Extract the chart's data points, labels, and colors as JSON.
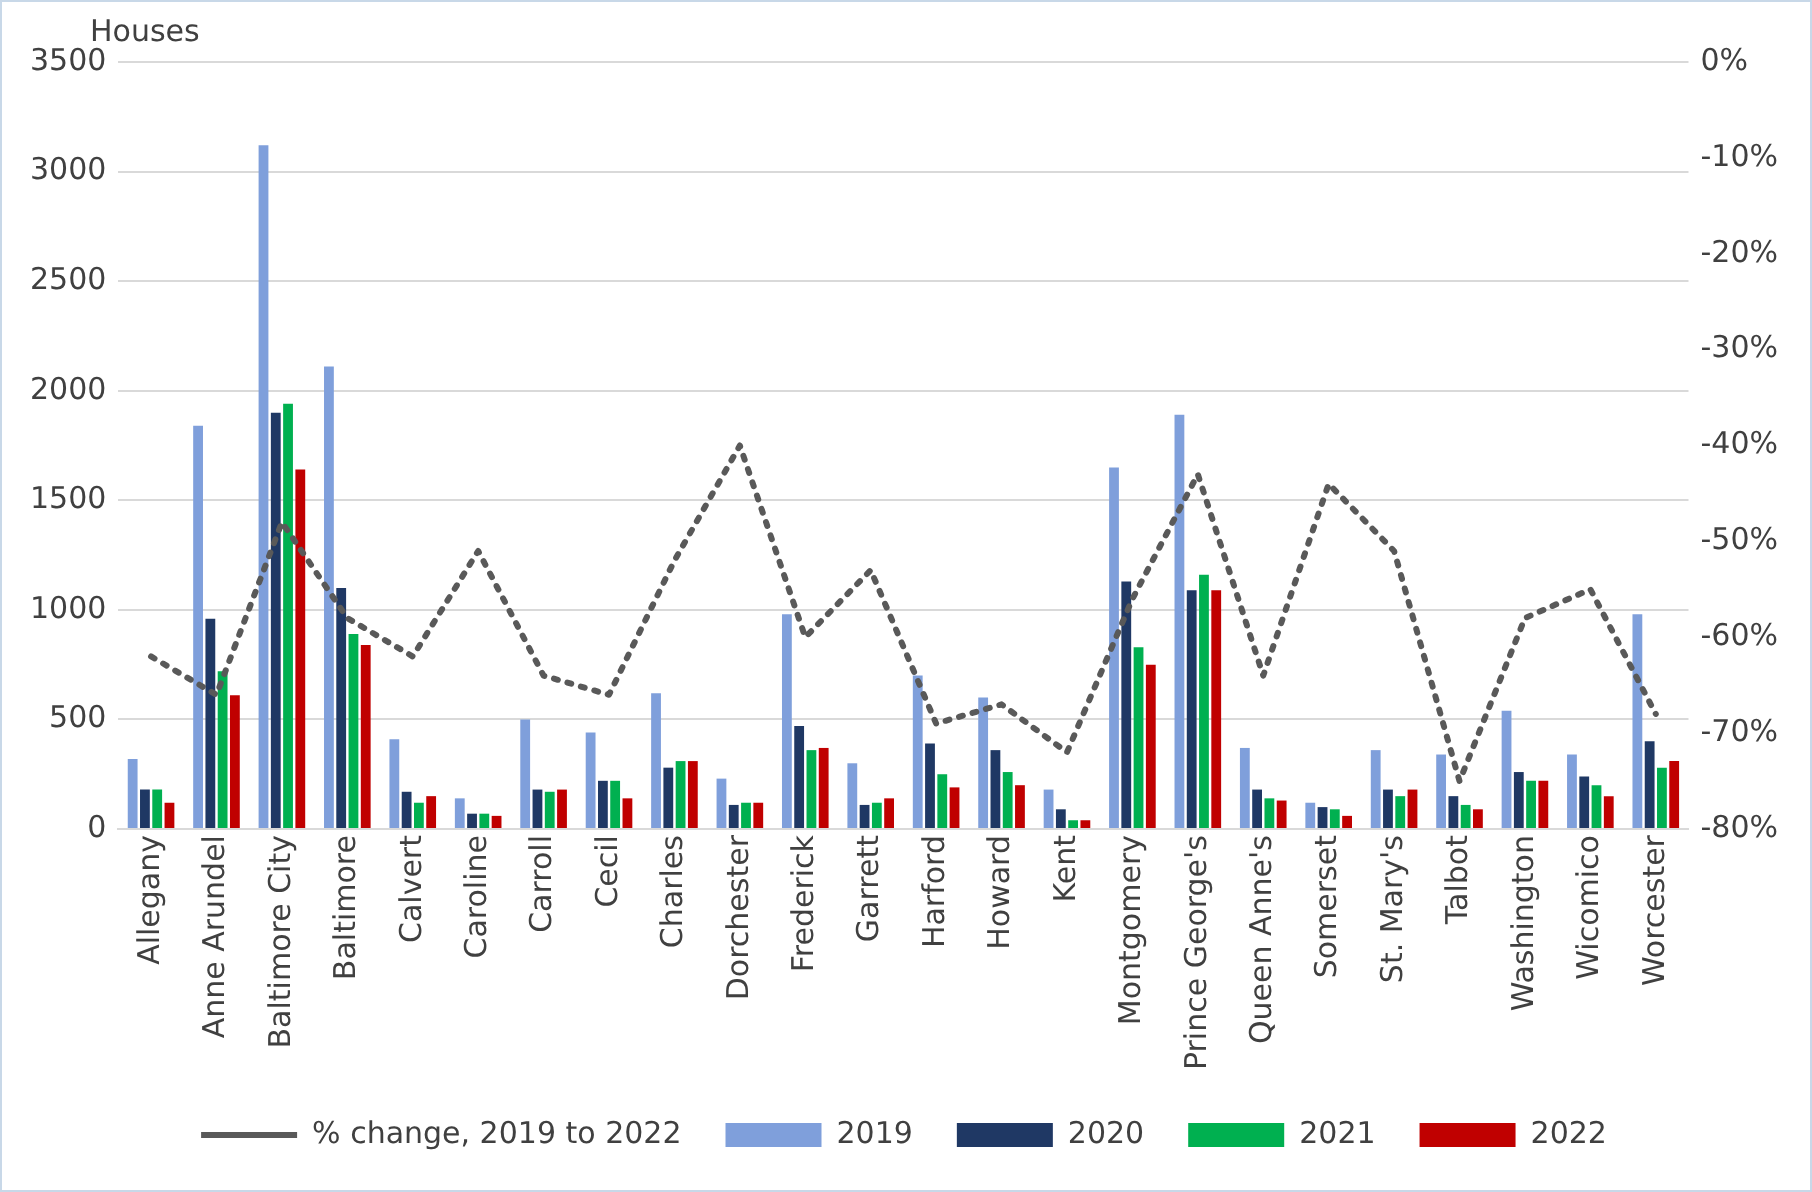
{
  "chart_data": {
    "type": "bar",
    "ylabel": "Houses",
    "categories": [
      "Allegany",
      "Anne Arundel",
      "Baltimore City",
      "Baltimore",
      "Calvert",
      "Caroline",
      "Carroll",
      "Cecil",
      "Charles",
      "Dorchester",
      "Frederick",
      "Garrett",
      "Harford",
      "Howard",
      "Kent",
      "Montgomery",
      "Prince George's",
      "Queen Anne's",
      "Somerset",
      "St. Mary's",
      "Talbot",
      "Washington",
      "Wicomico",
      "Worcester"
    ],
    "series": [
      {
        "name": "2019",
        "color": "#7f9fdb",
        "values": [
          320,
          1840,
          3120,
          2110,
          410,
          140,
          500,
          440,
          620,
          230,
          980,
          300,
          700,
          600,
          180,
          1650,
          1890,
          370,
          120,
          360,
          340,
          540,
          340,
          980
        ]
      },
      {
        "name": "2020",
        "color": "#1f3864",
        "values": [
          180,
          960,
          1900,
          1100,
          170,
          70,
          180,
          220,
          280,
          110,
          470,
          110,
          390,
          360,
          90,
          1130,
          1090,
          180,
          100,
          180,
          150,
          260,
          240,
          400
        ]
      },
      {
        "name": "2021",
        "color": "#00b050",
        "values": [
          180,
          720,
          1940,
          890,
          120,
          70,
          170,
          220,
          310,
          120,
          360,
          120,
          250,
          260,
          40,
          830,
          1160,
          140,
          90,
          150,
          110,
          220,
          200,
          280
        ]
      },
      {
        "name": "2022",
        "color": "#c00000",
        "values": [
          120,
          610,
          1640,
          840,
          150,
          60,
          180,
          140,
          310,
          120,
          370,
          140,
          190,
          200,
          40,
          750,
          1090,
          130,
          60,
          180,
          90,
          220,
          150,
          310
        ]
      },
      {
        "name": "% change, 2019 to 2022",
        "type": "line",
        "axis": "y2",
        "color": "#595959",
        "line_style": "dotted",
        "marker": "none",
        "values": [
          -62,
          -66,
          -48,
          -58,
          -62,
          -51,
          -64,
          -66,
          -52,
          -40,
          -60,
          -53,
          -69,
          -67,
          -72,
          -56,
          -43,
          -64,
          -44,
          -51,
          -75,
          -58,
          -55,
          -68
        ]
      }
    ],
    "ylim": [
      0,
      3500
    ],
    "yticks": [
      0,
      500,
      1000,
      1500,
      2000,
      2500,
      3000,
      3500
    ],
    "y2lim": [
      -80,
      0
    ],
    "y2ticks": [
      {
        "value": 0,
        "label": "0%"
      },
      {
        "value": -10,
        "label": "-10%"
      },
      {
        "value": -20,
        "label": "-20%"
      },
      {
        "value": -30,
        "label": "-30%"
      },
      {
        "value": -40,
        "label": "-40%"
      },
      {
        "value": -50,
        "label": "-50%"
      },
      {
        "value": -60,
        "label": "-60%"
      },
      {
        "value": -70,
        "label": "-70%"
      },
      {
        "value": -80,
        "label": "-80%"
      }
    ],
    "grid": "y",
    "legend": "bottom"
  }
}
